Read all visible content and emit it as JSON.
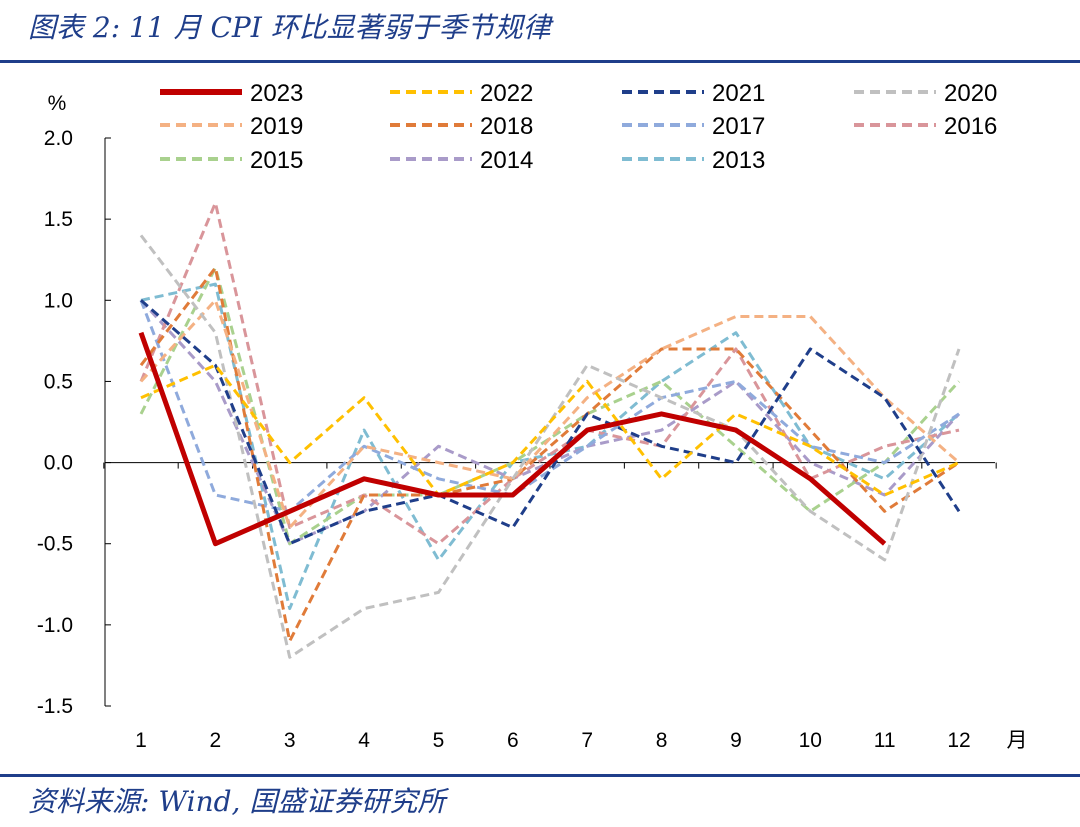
{
  "header": {
    "title": "图表 2:  11 月 CPI 环比显著弱于季节规律"
  },
  "footer": {
    "source": "资料来源:  Wind,  国盛证券研究所"
  },
  "chart_data": {
    "type": "line",
    "ylabel": "%",
    "xlabel": "月",
    "ylim": [
      -1.5,
      2.0
    ],
    "yticks": [
      2.0,
      1.5,
      1.0,
      0.5,
      0.0,
      -0.5,
      -1.0,
      -1.5
    ],
    "ytick_labels": [
      "2.0",
      "1.5",
      "1.0",
      "0.5",
      "0.0",
      "-0.5",
      "-1.0",
      "-1.5"
    ],
    "categories": [
      "1",
      "2",
      "3",
      "4",
      "5",
      "6",
      "7",
      "8",
      "9",
      "10",
      "11",
      "12"
    ],
    "legend_position": "top",
    "series": [
      {
        "name": "2023",
        "color": "#c00000",
        "style": "solid",
        "values": [
          0.8,
          -0.5,
          -0.3,
          -0.1,
          -0.2,
          -0.2,
          0.2,
          0.3,
          0.2,
          -0.1,
          -0.5,
          null
        ]
      },
      {
        "name": "2022",
        "color": "#ffc000",
        "style": "dashed",
        "values": [
          0.4,
          0.6,
          0.0,
          0.4,
          -0.2,
          0.0,
          0.5,
          -0.1,
          0.3,
          0.1,
          -0.2,
          0.0
        ]
      },
      {
        "name": "2021",
        "color": "#1f3e8a",
        "style": "dashed",
        "values": [
          1.0,
          0.6,
          -0.5,
          -0.3,
          -0.2,
          -0.4,
          0.3,
          0.1,
          0.0,
          0.7,
          0.4,
          -0.3
        ]
      },
      {
        "name": "2020",
        "color": "#c0c0c0",
        "style": "dashed",
        "values": [
          1.4,
          0.8,
          -1.2,
          -0.9,
          -0.8,
          -0.1,
          0.6,
          0.4,
          0.2,
          -0.3,
          -0.6,
          0.7
        ]
      },
      {
        "name": "2019",
        "color": "#f4b183",
        "style": "dashed",
        "values": [
          0.5,
          1.0,
          -0.4,
          0.1,
          0.0,
          -0.1,
          0.4,
          0.7,
          0.9,
          0.9,
          0.4,
          0.0
        ]
      },
      {
        "name": "2018",
        "color": "#e07b39",
        "style": "dashed",
        "values": [
          0.6,
          1.2,
          -1.1,
          -0.2,
          -0.2,
          -0.1,
          0.3,
          0.7,
          0.7,
          0.2,
          -0.3,
          0.0
        ]
      },
      {
        "name": "2017",
        "color": "#8faadc",
        "style": "dashed",
        "values": [
          1.0,
          -0.2,
          -0.3,
          0.1,
          -0.1,
          -0.2,
          0.1,
          0.4,
          0.5,
          0.1,
          0.0,
          0.3
        ]
      },
      {
        "name": "2016",
        "color": "#d9959a",
        "style": "dashed",
        "values": [
          0.5,
          1.6,
          -0.4,
          -0.2,
          -0.5,
          -0.1,
          0.2,
          0.1,
          0.7,
          -0.1,
          0.1,
          0.2
        ]
      },
      {
        "name": "2015",
        "color": "#a9d18e",
        "style": "dashed",
        "values": [
          0.3,
          1.2,
          -0.5,
          -0.2,
          -0.2,
          0.0,
          0.3,
          0.5,
          0.1,
          -0.3,
          0.0,
          0.5
        ]
      },
      {
        "name": "2014",
        "color": "#a99bc9",
        "style": "dashed",
        "values": [
          1.0,
          0.5,
          -0.5,
          -0.3,
          0.1,
          -0.1,
          0.1,
          0.2,
          0.5,
          0.0,
          -0.2,
          0.3
        ]
      },
      {
        "name": "2013",
        "color": "#7fbcd2",
        "style": "dashed",
        "values": [
          1.0,
          1.1,
          -0.9,
          0.2,
          -0.6,
          0.0,
          0.1,
          0.5,
          0.8,
          0.1,
          -0.1,
          0.3
        ]
      }
    ]
  }
}
